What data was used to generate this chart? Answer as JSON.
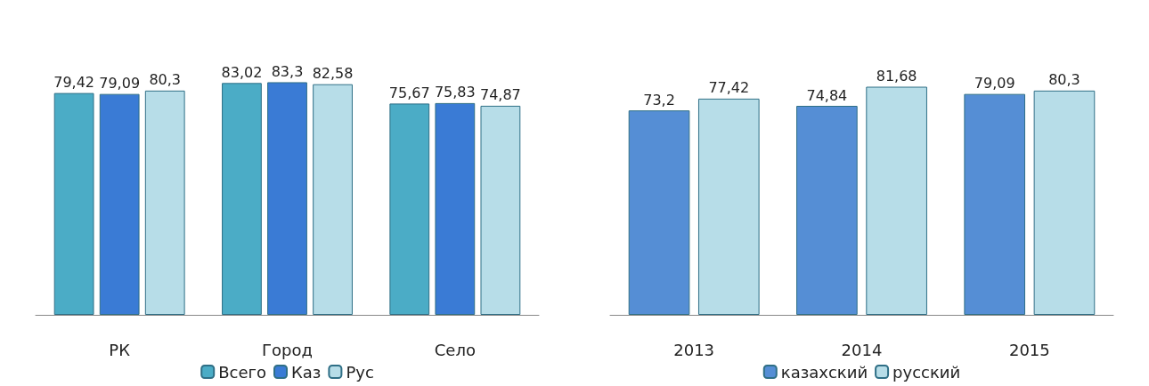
{
  "chart_data": [
    {
      "type": "bar",
      "categories": [
        "РК",
        "Город",
        "Село"
      ],
      "series": [
        {
          "name": "Всего",
          "color": "#4bacc6",
          "values": [
            79.42,
            83.02,
            75.67
          ],
          "value_labels": [
            "79,42",
            "83,02",
            "75,67"
          ]
        },
        {
          "name": "Каз",
          "color": "#3a7bd5",
          "values": [
            79.09,
            83.3,
            75.83
          ],
          "value_labels": [
            "79,09",
            "83,3",
            "75,83"
          ]
        },
        {
          "name": "Рус",
          "color": "#b7dde8",
          "values": [
            80.3,
            82.58,
            74.87
          ],
          "value_labels": [
            "80,3",
            "82,58",
            "74,87"
          ]
        }
      ],
      "legend": "bottom",
      "tick_labels": "x"
    },
    {
      "type": "bar",
      "categories": [
        "2013",
        "2014",
        "2015"
      ],
      "series": [
        {
          "name": "казахский",
          "color": "#558ed5",
          "values": [
            73.2,
            74.84,
            79.09
          ],
          "value_labels": [
            "73,2",
            "74,84",
            "79,09"
          ]
        },
        {
          "name": "русский",
          "color": "#b7dde8",
          "values": [
            77.42,
            81.68,
            80.3
          ],
          "value_labels": [
            "77,42",
            "81,68",
            "80,3"
          ]
        }
      ],
      "legend": "bottom",
      "tick_labels": "x"
    }
  ]
}
